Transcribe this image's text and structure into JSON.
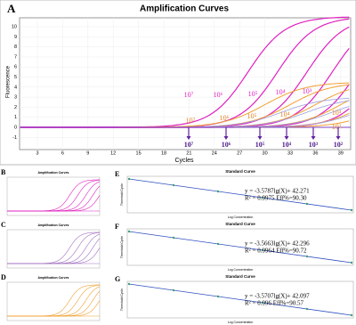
{
  "panel_a": {
    "letter": "A",
    "title": "Amplification Curves",
    "y_label": "Fluorescence",
    "x_label": "Cycles",
    "y_ticks": [
      "10",
      "9",
      "8",
      "7",
      "6",
      "5",
      "4",
      "3",
      "2",
      "1",
      "0",
      "-1"
    ],
    "x_ticks": [
      "3",
      "6",
      "9",
      "12",
      "15",
      "18",
      "21",
      "24",
      "27",
      "30",
      "33",
      "36",
      "39"
    ],
    "pink_labels": [
      "10⁷",
      "10⁶",
      "10⁵",
      "10⁴",
      "10³"
    ],
    "orange_labels": [
      "10⁷",
      "10⁶",
      "10⁵",
      "10⁴",
      "10³",
      "10²"
    ],
    "arrow_labels": [
      "10⁷",
      "10⁶",
      "10⁵",
      "10⁴",
      "10³",
      "10²"
    ]
  },
  "small_panels": [
    {
      "letter": "B",
      "title": "Amplification Curves"
    },
    {
      "letter": "C",
      "title": "Amplification Curves"
    },
    {
      "letter": "D",
      "title": "Amplification Curves"
    }
  ],
  "standard_curves": [
    {
      "letter": "E",
      "title": "Standard Curve",
      "y_label": "Threshold Cycle",
      "x_label": "Log Concentration",
      "equation": "y = -3.5787lg(X)+ 42.271",
      "fit": "R² = 0.9975 Eff%=90.30"
    },
    {
      "letter": "F",
      "title": "Standard Curve",
      "y_label": "Threshold Cycle",
      "x_label": "Log Concentration",
      "equation": "y = -3.5663lg(X)+ 42.296",
      "fit": "R² = 0.9964 Eff%=90.72"
    },
    {
      "letter": "G",
      "title": "Standard Curve",
      "y_label": "Threshold Cycle",
      "x_label": "Log Concentration",
      "equation": "y = -3.5707lg(X)+ 42.097",
      "fit": "R² = 0.996 Eff%=90.57"
    }
  ]
}
